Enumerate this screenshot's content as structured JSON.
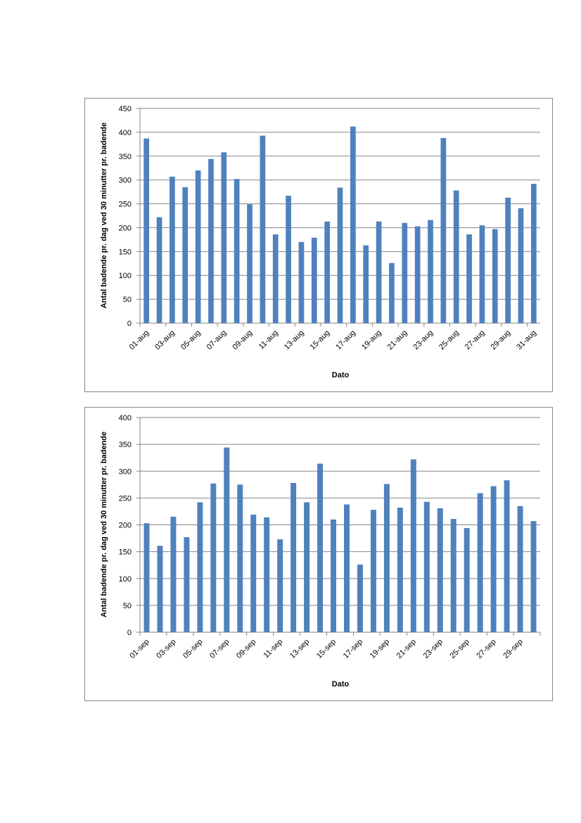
{
  "charts": {
    "aug": {
      "ylabel": "Antal badende pr. dag ved 30 minutter pr. badende",
      "xlabel": "Dato"
    },
    "sep": {
      "ylabel": "Antal badende pr. dag ved 30 minutter pr. badende",
      "xlabel": "Dato"
    }
  },
  "chart_data": [
    {
      "type": "bar",
      "bar_color": "#4f81bd",
      "gridline_color": "#868686",
      "grid": true,
      "legend": "none",
      "xlabel": "Dato",
      "ylabel": "Antal badende pr. dag ved 30 minutter pr. badende",
      "ylim": [
        0,
        450
      ],
      "ytick_step": 50,
      "categories": [
        "01-aug",
        "02-aug",
        "03-aug",
        "04-aug",
        "05-aug",
        "06-aug",
        "07-aug",
        "08-aug",
        "09-aug",
        "10-aug",
        "11-aug",
        "12-aug",
        "13-aug",
        "14-aug",
        "15-aug",
        "16-aug",
        "17-aug",
        "18-aug",
        "19-aug",
        "20-aug",
        "21-aug",
        "22-aug",
        "23-aug",
        "24-aug",
        "25-aug",
        "26-aug",
        "27-aug",
        "28-aug",
        "29-aug",
        "30-aug",
        "31-aug"
      ],
      "shown_tick_labels": [
        "01-aug",
        "03-aug",
        "05-aug",
        "07-aug",
        "09-aug",
        "11-aug",
        "13-aug",
        "15-aug",
        "17-aug",
        "19-aug",
        "21-aug",
        "23-aug",
        "25-aug",
        "27-aug",
        "29-aug",
        "31-aug"
      ],
      "values": [
        387,
        222,
        307,
        285,
        320,
        344,
        358,
        302,
        249,
        393,
        186,
        267,
        170,
        179,
        213,
        284,
        412,
        163,
        213,
        126,
        210,
        203,
        216,
        388,
        278,
        186,
        205,
        197,
        263,
        241,
        292
      ]
    },
    {
      "type": "bar",
      "bar_color": "#4f81bd",
      "gridline_color": "#868686",
      "grid": true,
      "legend": "none",
      "xlabel": "Dato",
      "ylabel": "Antal badende pr. dag ved 30 minutter pr. badende",
      "ylim": [
        0,
        400
      ],
      "ytick_step": 50,
      "categories": [
        "01-sep",
        "02-sep",
        "03-sep",
        "04-sep",
        "05-sep",
        "06-sep",
        "07-sep",
        "08-sep",
        "09-sep",
        "10-sep",
        "11-sep",
        "12-sep",
        "13-sep",
        "14-sep",
        "15-sep",
        "16-sep",
        "17-sep",
        "18-sep",
        "19-sep",
        "20-sep",
        "21-sep",
        "22-sep",
        "23-sep",
        "24-sep",
        "25-sep",
        "26-sep",
        "27-sep",
        "28-sep",
        "29-sep",
        "30-sep"
      ],
      "shown_tick_labels": [
        "01-sep",
        "03-sep",
        "05-sep",
        "07-sep",
        "09-sep",
        "11-sep",
        "13-sep",
        "15-sep",
        "17-sep",
        "19-sep",
        "21-sep",
        "23-sep",
        "25-sep",
        "27-sep",
        "29-sep"
      ],
      "values": [
        203,
        161,
        215,
        177,
        242,
        277,
        344,
        275,
        219,
        214,
        173,
        278,
        242,
        314,
        210,
        238,
        126,
        228,
        276,
        232,
        322,
        243,
        231,
        211,
        194,
        259,
        272,
        283,
        235,
        207
      ]
    }
  ]
}
